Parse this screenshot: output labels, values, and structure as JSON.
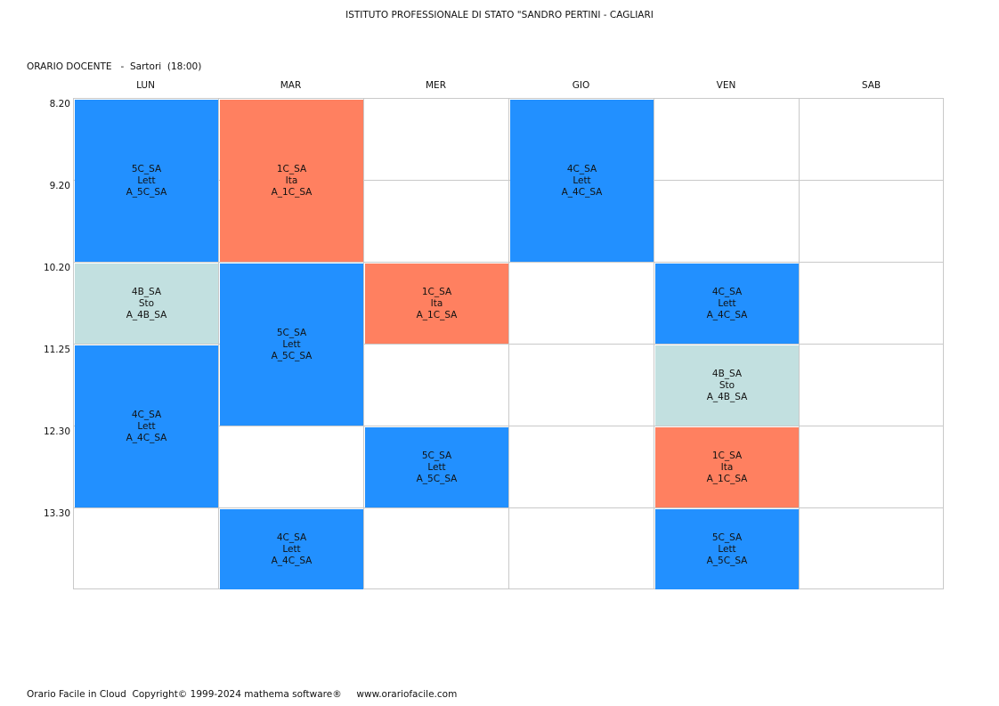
{
  "header": {
    "school": "ISTITUTO PROFESSIONALE DI STATO \"SANDRO PERTINI - CAGLIARI",
    "teacher_line": "ORARIO DOCENTE   -  Sartori  (18:00)"
  },
  "days": [
    "LUN",
    "MAR",
    "MER",
    "GIO",
    "VEN",
    "SAB"
  ],
  "times": [
    "8.20",
    "9.20",
    "10.20",
    "11.25",
    "12.30",
    "13.30"
  ],
  "colors": {
    "lett": "#2290ff",
    "ita": "#ff8060",
    "sto": "#c2e0e0",
    "grid": "#c9c9c9"
  },
  "lessons": [
    {
      "day": 0,
      "slot": 0,
      "span": 2,
      "cls": "5C_SA",
      "subj": "Lett",
      "room": "A_5C_SA",
      "color": "lett"
    },
    {
      "day": 0,
      "slot": 2,
      "span": 1,
      "cls": "4B_SA",
      "subj": "Sto",
      "room": "A_4B_SA",
      "color": "sto"
    },
    {
      "day": 0,
      "slot": 3,
      "span": 2,
      "cls": "4C_SA",
      "subj": "Lett",
      "room": "A_4C_SA",
      "color": "lett"
    },
    {
      "day": 1,
      "slot": 0,
      "span": 2,
      "cls": "1C_SA",
      "subj": "Ita",
      "room": "A_1C_SA",
      "color": "ita"
    },
    {
      "day": 1,
      "slot": 2,
      "span": 2,
      "cls": "5C_SA",
      "subj": "Lett",
      "room": "A_5C_SA",
      "color": "lett"
    },
    {
      "day": 1,
      "slot": 5,
      "span": 1,
      "cls": "4C_SA",
      "subj": "Lett",
      "room": "A_4C_SA",
      "color": "lett"
    },
    {
      "day": 2,
      "slot": 2,
      "span": 1,
      "cls": "1C_SA",
      "subj": "Ita",
      "room": "A_1C_SA",
      "color": "ita"
    },
    {
      "day": 2,
      "slot": 4,
      "span": 1,
      "cls": "5C_SA",
      "subj": "Lett",
      "room": "A_5C_SA",
      "color": "lett"
    },
    {
      "day": 3,
      "slot": 0,
      "span": 2,
      "cls": "4C_SA",
      "subj": "Lett",
      "room": "A_4C_SA",
      "color": "lett"
    },
    {
      "day": 4,
      "slot": 2,
      "span": 1,
      "cls": "4C_SA",
      "subj": "Lett",
      "room": "A_4C_SA",
      "color": "lett"
    },
    {
      "day": 4,
      "slot": 3,
      "span": 1,
      "cls": "4B_SA",
      "subj": "Sto",
      "room": "A_4B_SA",
      "color": "sto"
    },
    {
      "day": 4,
      "slot": 4,
      "span": 1,
      "cls": "1C_SA",
      "subj": "Ita",
      "room": "A_1C_SA",
      "color": "ita"
    },
    {
      "day": 4,
      "slot": 5,
      "span": 1,
      "cls": "5C_SA",
      "subj": "Lett",
      "room": "A_5C_SA",
      "color": "lett"
    }
  ],
  "footer": {
    "text": "Orario Facile in Cloud  Copyright© 1999-2024 mathema software®     www.orariofacile.com"
  }
}
